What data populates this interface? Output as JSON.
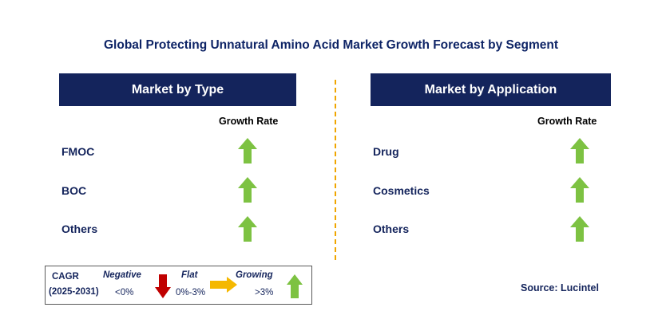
{
  "title": "Global Protecting Unnatural Amino Acid Market Growth Forecast by Segment",
  "left_panel": {
    "header": "Market by Type",
    "growth_label": "Growth Rate",
    "rows": [
      {
        "label": "FMOC",
        "trend": "growing"
      },
      {
        "label": "BOC",
        "trend": "growing"
      },
      {
        "label": "Others",
        "trend": "growing"
      }
    ]
  },
  "right_panel": {
    "header": "Market by Application",
    "growth_label": "Growth Rate",
    "rows": [
      {
        "label": "Drug",
        "trend": "growing"
      },
      {
        "label": "Cosmetics",
        "trend": "growing"
      },
      {
        "label": "Others",
        "trend": "growing"
      }
    ]
  },
  "legend": {
    "cagr_label": "CAGR",
    "period": "(2025-2031)",
    "negative_label": "Negative",
    "negative_value": "<0%",
    "flat_label": "Flat",
    "flat_value": "0%-3%",
    "growing_label": "Growing",
    "growing_value": ">3%"
  },
  "source": "Source: Lucintel",
  "colors": {
    "header_bg": "#14245c",
    "growing": "#7dc242",
    "negative": "#c00000",
    "flat": "#f5b800",
    "divider": "#f0a500"
  }
}
